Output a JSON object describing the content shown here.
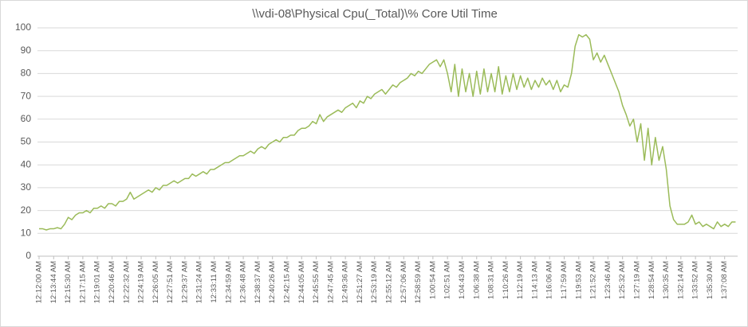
{
  "chart_data": {
    "type": "line",
    "title": "\\\\vdi-08\\Physical Cpu(_Total)\\% Core Util Time",
    "categories": [
      "12:12:00 AM",
      null,
      null,
      null,
      "12:13:44 AM",
      null,
      null,
      null,
      "12:15:30 AM",
      null,
      null,
      null,
      "12:17:15 AM",
      null,
      null,
      null,
      "12:19:01 AM",
      null,
      null,
      null,
      "12:20:46 AM",
      null,
      null,
      null,
      "12:22:32 AM",
      null,
      null,
      null,
      "12:24:19 AM",
      null,
      null,
      null,
      "12:26:05 AM",
      null,
      null,
      null,
      "12:27:51 AM",
      null,
      null,
      null,
      "12:29:37 AM",
      null,
      null,
      null,
      "12:31:24 AM",
      null,
      null,
      null,
      "12:33:11 AM",
      null,
      null,
      null,
      "12:34:59 AM",
      null,
      null,
      null,
      "12:36:48 AM",
      null,
      null,
      null,
      "12:38:37 AM",
      null,
      null,
      null,
      "12:40:26 AM",
      null,
      null,
      null,
      "12:42:15 AM",
      null,
      null,
      null,
      "12:44:05 AM",
      null,
      null,
      null,
      "12:45:55 AM",
      null,
      null,
      null,
      "12:47:45 AM",
      null,
      null,
      null,
      "12:49:36 AM",
      null,
      null,
      null,
      "12:51:27 AM",
      null,
      null,
      null,
      "12:53:19 AM",
      null,
      null,
      null,
      "12:55:12 AM",
      null,
      null,
      null,
      "12:57:06 AM",
      null,
      null,
      null,
      "12:58:59 AM",
      null,
      null,
      null,
      "1:00:54 AM",
      null,
      null,
      null,
      "1:02:51 AM",
      null,
      null,
      null,
      "1:04:43 AM",
      null,
      null,
      null,
      "1:06:38 AM",
      null,
      null,
      null,
      "1:08:31 AM",
      null,
      null,
      null,
      "1:10:26 AM",
      null,
      null,
      null,
      "1:12:19 AM",
      null,
      null,
      null,
      "1:14:13 AM",
      null,
      null,
      null,
      "1:16:06 AM",
      null,
      null,
      null,
      "1:17:59 AM",
      null,
      null,
      null,
      "1:19:53 AM",
      null,
      null,
      null,
      "1:21:52 AM",
      null,
      null,
      null,
      "1:23:46 AM",
      null,
      null,
      null,
      "1:25:32 AM",
      null,
      null,
      null,
      "1:27:19 AM",
      null,
      null,
      null,
      "1:28:54 AM",
      null,
      null,
      null,
      "1:30:35 AM",
      null,
      null,
      null,
      "1:32:14 AM",
      null,
      null,
      null,
      "1:33:52 AM",
      null,
      null,
      null,
      "1:35:30 AM",
      null,
      null,
      null,
      "1:37:08 AM",
      null,
      null,
      null
    ],
    "series": [
      {
        "color": "#9bbb59",
        "values": [
          12,
          12,
          11.5,
          12,
          12,
          12.5,
          12,
          14,
          17,
          16,
          18,
          19,
          19,
          20,
          19,
          21,
          21,
          22,
          21,
          23,
          23,
          22,
          24,
          24,
          25,
          28,
          25,
          26,
          27,
          28,
          29,
          28,
          30,
          29,
          31,
          31,
          32,
          33,
          32,
          33,
          34,
          34,
          36,
          35,
          36,
          37,
          36,
          38,
          38,
          39,
          40,
          41,
          41,
          42,
          43,
          44,
          44,
          45,
          46,
          45,
          47,
          48,
          47,
          49,
          50,
          51,
          50,
          52,
          52,
          53,
          53,
          55,
          56,
          56,
          57,
          59,
          58,
          62,
          59,
          61,
          62,
          63,
          64,
          63,
          65,
          66,
          67,
          65,
          68,
          67,
          70,
          69,
          71,
          72,
          73,
          71,
          73,
          75,
          74,
          76,
          77,
          78,
          80,
          79,
          81,
          80,
          82,
          84,
          85,
          86,
          83,
          86,
          80,
          72,
          84,
          70,
          82,
          72,
          80,
          70,
          81,
          71,
          82,
          72,
          80,
          72,
          83,
          71,
          79,
          72,
          80,
          73,
          79,
          74,
          78,
          73,
          77,
          74,
          78,
          75,
          77,
          73,
          77,
          72,
          75,
          74,
          80,
          92,
          97,
          96,
          97,
          95,
          86,
          89,
          85,
          88,
          84,
          80,
          76,
          72,
          66,
          62,
          57,
          60,
          50,
          58,
          42,
          56,
          40,
          52,
          42,
          48,
          38,
          22,
          16,
          14,
          14,
          14,
          15,
          18,
          14,
          15,
          13,
          14,
          13,
          12,
          15,
          13,
          14,
          13,
          15,
          15
        ]
      }
    ],
    "ylim": [
      0,
      100
    ],
    "yticks": [
      0,
      10,
      20,
      30,
      40,
      50,
      60,
      70,
      80,
      90,
      100
    ],
    "grid": true
  }
}
